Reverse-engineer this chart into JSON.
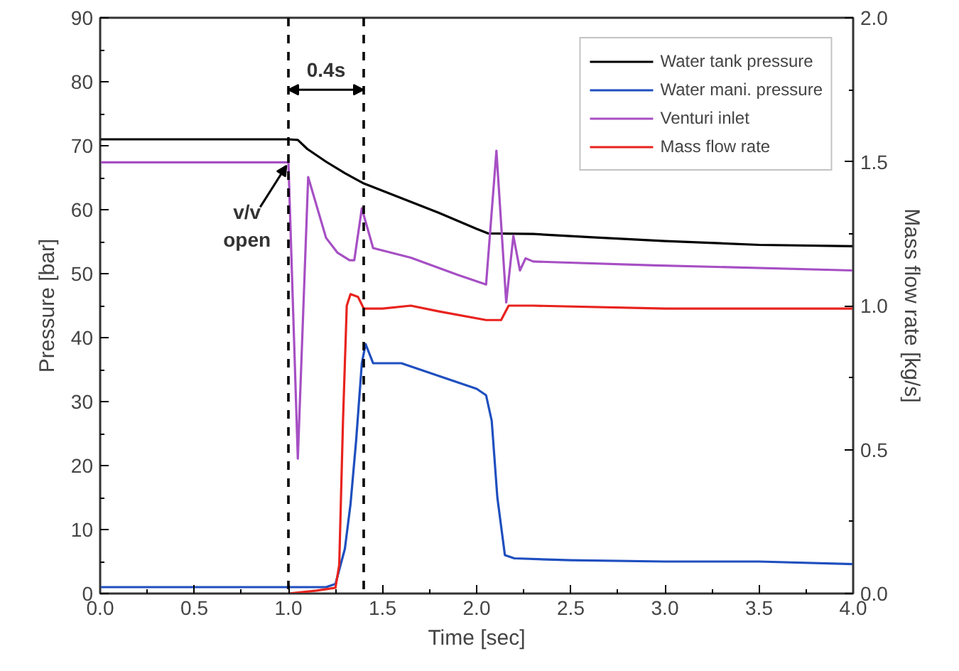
{
  "chart_data": {
    "type": "line",
    "xlabel": "Time [sec]",
    "ylabel": "Pressure [bar]",
    "y2label": "Mass flow rate [kg/s]",
    "xlim": [
      0,
      4
    ],
    "ylim": [
      0,
      90
    ],
    "y2lim": [
      0,
      2
    ],
    "xticks": [
      {
        "value": 0,
        "label": "0.0"
      },
      {
        "value": 0.5,
        "label": "0.5"
      },
      {
        "value": 1,
        "label": "1.0"
      },
      {
        "value": 1.5,
        "label": "1.5"
      },
      {
        "value": 2,
        "label": "2.0"
      },
      {
        "value": 2.5,
        "label": "2.5"
      },
      {
        "value": 3,
        "label": "3.0"
      },
      {
        "value": 3.5,
        "label": "3.5"
      },
      {
        "value": 4,
        "label": "4.0"
      }
    ],
    "yticks": [
      0,
      10,
      20,
      30,
      40,
      50,
      60,
      70,
      80,
      90
    ],
    "y2ticks": [
      {
        "value": 0,
        "label": "0.0"
      },
      {
        "value": 0.5,
        "label": "0.5"
      },
      {
        "value": 1,
        "label": "1.0"
      },
      {
        "value": 1.5,
        "label": "1.5"
      },
      {
        "value": 2,
        "label": "2.0"
      }
    ],
    "series": [
      {
        "name": "Water tank pressure",
        "color": "#000000",
        "x": [
          0,
          1.0,
          1.05,
          1.1,
          1.2,
          1.3,
          1.4,
          1.6,
          1.8,
          2.0,
          2.06,
          2.3,
          2.6,
          3.0,
          3.5,
          4.0
        ],
        "values": [
          71,
          71,
          70.9,
          69.5,
          67.5,
          65.7,
          64.1,
          61.8,
          59.5,
          57,
          56.3,
          56.2,
          55.7,
          55.1,
          54.5,
          54.3
        ]
      },
      {
        "name": "Water mani. pressure",
        "color": "#1f4fbf",
        "x": [
          0,
          1.2,
          1.25,
          1.3,
          1.33,
          1.36,
          1.39,
          1.41,
          1.45,
          1.6,
          1.8,
          2.0,
          2.05,
          2.08,
          2.11,
          2.15,
          2.2,
          2.5,
          3.0,
          3.5,
          4.0
        ],
        "values": [
          1,
          1,
          1.5,
          7,
          14,
          24,
          36,
          39,
          36,
          36,
          34,
          32,
          31,
          27,
          15,
          6,
          5.5,
          5.2,
          5,
          5,
          4.6
        ]
      },
      {
        "name": "Venturi inlet",
        "color": "#a64fc4",
        "x": [
          0,
          1.0,
          1.05,
          1.105,
          1.2,
          1.26,
          1.325,
          1.35,
          1.39,
          1.45,
          1.65,
          1.9,
          2.05,
          2.105,
          2.157,
          2.195,
          2.23,
          2.26,
          2.3,
          2.95,
          4.0
        ],
        "values": [
          67.4,
          67.4,
          21.1,
          65.1,
          55.6,
          53.3,
          52.1,
          52.1,
          60.2,
          54,
          52.5,
          49.8,
          48.3,
          69.2,
          45.5,
          55.9,
          50.5,
          52.4,
          51.9,
          51.3,
          50.5
        ]
      },
      {
        "name": "Mass flow rate",
        "color": "#e8231e",
        "axis": "y2",
        "x": [
          1.0,
          1.15,
          1.25,
          1.27,
          1.29,
          1.31,
          1.33,
          1.37,
          1.4,
          1.5,
          1.65,
          1.8,
          2.05,
          2.13,
          2.17,
          2.3,
          3.0,
          4.0
        ],
        "values": [
          0,
          0.01,
          0.02,
          0.1,
          0.6,
          1.0,
          1.04,
          1.03,
          0.99,
          0.99,
          1.0,
          0.98,
          0.95,
          0.95,
          1.0,
          1.0,
          0.99,
          0.99
        ]
      }
    ],
    "ref_lines": [
      {
        "axis": "x",
        "value": 1.0,
        "color": "#000000",
        "line_style": "dashed"
      },
      {
        "axis": "x",
        "value": 1.4,
        "color": "#000000",
        "line_style": "dashed"
      }
    ],
    "annotations": [
      "0.4s",
      {
        "text": "v/v open",
        "x": 1.0,
        "y": 67.4
      }
    ],
    "legend": "top right",
    "grid": false
  }
}
